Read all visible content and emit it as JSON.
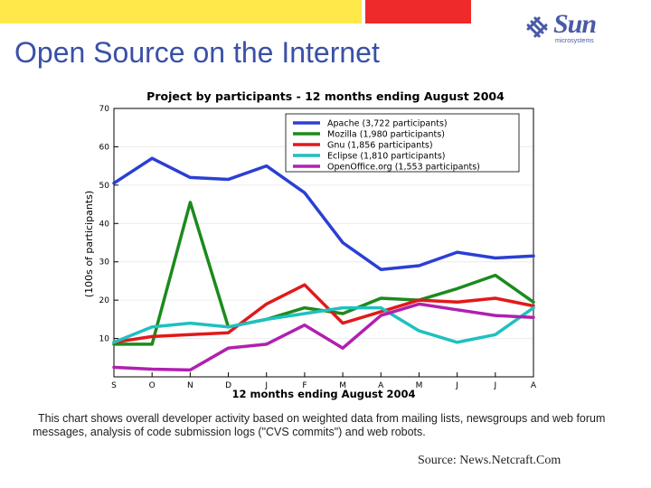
{
  "slide": {
    "title": "Open Source on the Internet",
    "caption": "This chart shows overall developer activity based on weighted data from mailing lists, newsgroups and web forum messages, analysis of code submission logs (\"CVS commits\") and web robots.",
    "source": "Source: News.Netcraft.Com",
    "logo": {
      "name": "Sun",
      "subtitle": "microsystems",
      "color": "#4a5aa8"
    },
    "top_bar_colors": [
      "#ffe94a",
      "#ee2a2a"
    ]
  },
  "chart_data": {
    "type": "line",
    "title": "Project by participants - 12 months ending August 2004",
    "xlabel": "12 months ending August 2004",
    "ylabel": "(100s of participants)",
    "categories": [
      "S",
      "O",
      "N",
      "D",
      "J",
      "F",
      "M",
      "A",
      "M",
      "J",
      "J",
      "A"
    ],
    "ylim": [
      0,
      70
    ],
    "yticks": [
      "10",
      "20",
      "30",
      "40",
      "50",
      "60",
      "70"
    ],
    "legend_position": "top-right",
    "series": [
      {
        "name": "Apache (3,722 participants)",
        "color": "#2b3fd4",
        "values": [
          50.5,
          57,
          52,
          51.5,
          55,
          48,
          35,
          28,
          29,
          32.5,
          31,
          31.5
        ]
      },
      {
        "name": "Mozilla (1,980 participants)",
        "color": "#1c8a1c",
        "values": [
          8.5,
          8.5,
          45.5,
          13,
          15,
          18,
          16.5,
          20.5,
          20,
          23,
          26.5,
          19.5
        ]
      },
      {
        "name": "Gnu (1,856 participants)",
        "color": "#e01a1a",
        "values": [
          9,
          10.5,
          11,
          11.5,
          19,
          24,
          14,
          17,
          20,
          19.5,
          20.5,
          18.5
        ]
      },
      {
        "name": "Eclipse (1,810 participants)",
        "color": "#1fc0c0",
        "values": [
          9,
          13,
          14,
          13,
          15,
          16.5,
          18,
          18,
          12,
          9,
          11,
          18
        ]
      },
      {
        "name": "OpenOffice.org (1,553 participants)",
        "color": "#b020b0",
        "values": [
          2.5,
          2,
          1.8,
          7.5,
          8.5,
          13.5,
          7.5,
          16,
          19,
          17.5,
          16,
          15.5
        ]
      }
    ]
  }
}
